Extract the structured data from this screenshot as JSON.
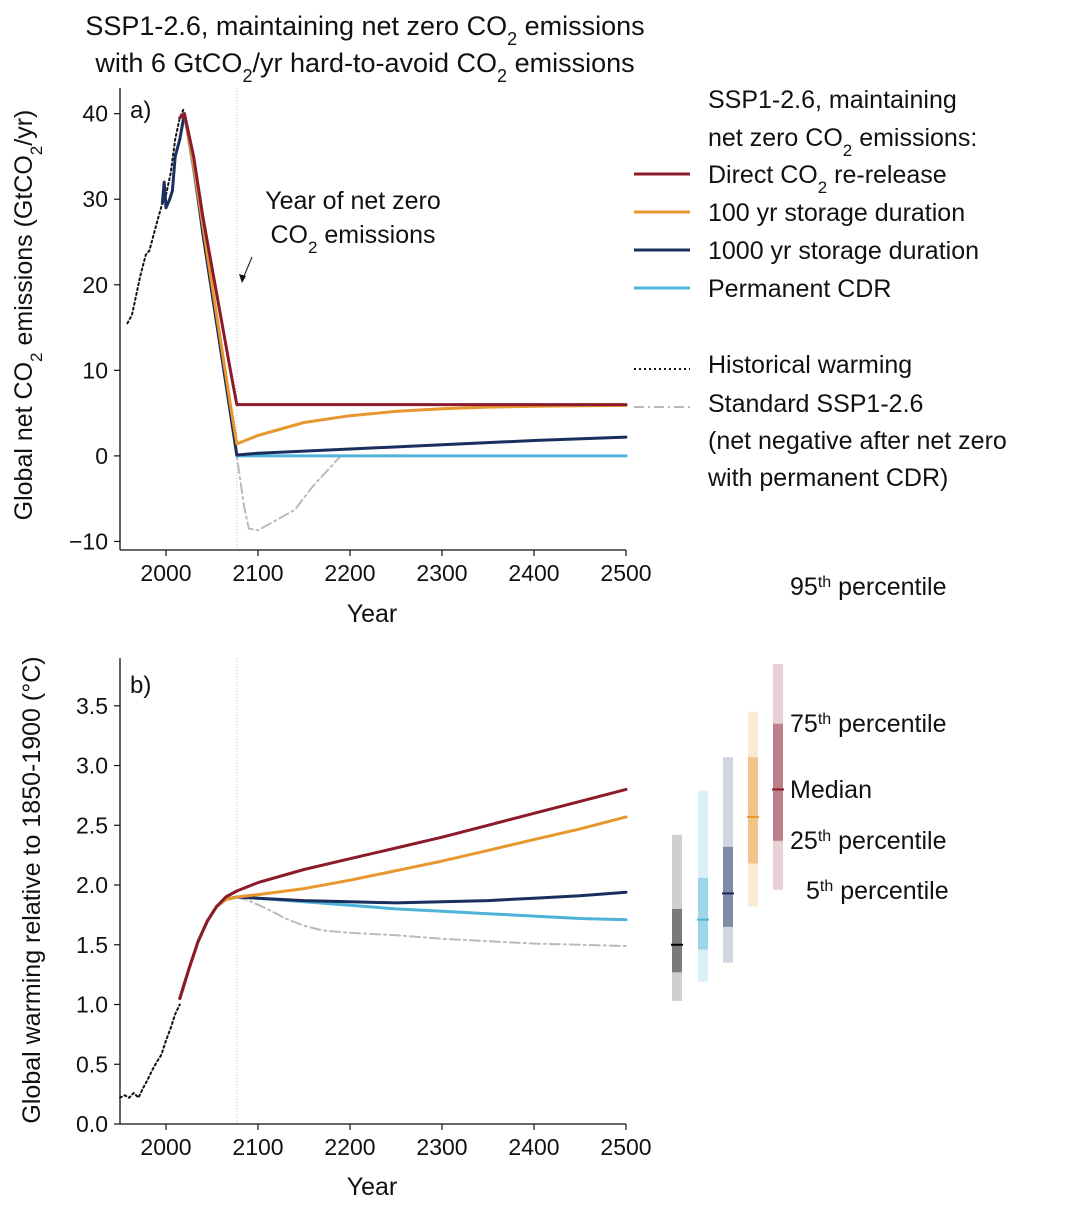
{
  "figure": {
    "title_line1": "SSP1-2.6, maintaining net zero CO",
    "title_line1_sub": "2",
    "title_line1_end": " emissions",
    "title_line2_start": "with 6 GtCO",
    "title_line2_sub": "2",
    "title_line2_end": "/yr hard-to-avoid CO",
    "title_line2_sub2": "2",
    "title_line2_tail": " emissions"
  },
  "colors": {
    "direct": "#8b1a2b",
    "storage100": "#e8962e",
    "storage1000": "#1b2f5e",
    "permanent": "#4fb3d9",
    "historical": "#111111",
    "standard": "#bbbbbb"
  },
  "legend": {
    "header_line1": "SSP1-2.6, maintaining",
    "header_line2": "net zero CO",
    "header_line2_sub": "2",
    "header_line2_end": " emissions:",
    "direct_a": "Direct CO",
    "direct_sub": "2",
    "direct_b": " re-release",
    "storage100": "100 yr storage duration",
    "storage1000": "1000 yr storage duration",
    "permanent": "Permanent CDR",
    "historical": "Historical warming",
    "standard_line1": "Standard SSP1-2.6",
    "standard_line2": "(net negative after net zero",
    "standard_line3": "with permanent CDR)"
  },
  "percentile_key": {
    "p95": "95",
    "p95_sup": "th",
    "p95_end": " percentile",
    "p75": "75",
    "p75_sup": "th",
    "p75_end": " percentile",
    "median": "Median",
    "p25": "25",
    "p25_sup": "th",
    "p25_end": " percentile",
    "p5": "5",
    "p5_sup": "th",
    "p5_end": " percentile"
  },
  "chart_data": [
    {
      "type": "line",
      "panel_label": "a)",
      "xlabel": "Year",
      "ylabel_a": "Global net CO",
      "ylabel_sub": "2",
      "ylabel_b": " emissions (GtCO",
      "ylabel_sub2": "2",
      "ylabel_c": "/yr)",
      "xlim": [
        1950,
        2500
      ],
      "ylim": [
        -11,
        43
      ],
      "xticks": [
        2000,
        2100,
        2200,
        2300,
        2400,
        2500
      ],
      "yticks": [
        -10,
        0,
        10,
        20,
        30,
        40
      ],
      "ytick_labels": [
        "−10",
        "0",
        "10",
        "20",
        "30",
        "40"
      ],
      "net_zero_year": 2077,
      "annotation_line1": "Year of net zero",
      "annotation_line2_a": "CO",
      "annotation_line2_sub": "2",
      "annotation_line2_b": " emissions",
      "series": [
        {
          "key": "historical",
          "style": "dotted",
          "x": [
            1958,
            1963,
            1968,
            1972,
            1978,
            1982,
            1987,
            1992,
            1996,
            2000,
            2005,
            2010,
            2015,
            2019
          ],
          "y": [
            15.5,
            16.5,
            19,
            21,
            23.5,
            24,
            26,
            28,
            29.5,
            30.5,
            33,
            37,
            39.5,
            40.5
          ]
        },
        {
          "key": "standard",
          "style": "dashdot",
          "x": [
            2015,
            2020,
            2030,
            2040,
            2050,
            2060,
            2070,
            2077,
            2085,
            2090,
            2100,
            2140,
            2160,
            2190
          ],
          "y": [
            39.5,
            40,
            33,
            26,
            19,
            12,
            6,
            0,
            -6,
            -8.5,
            -8.7,
            -6.3,
            -3.5,
            0
          ]
        },
        {
          "key": "direct",
          "style": "solid",
          "x": [
            2015,
            2020,
            2030,
            2040,
            2050,
            2060,
            2070,
            2077,
            2100,
            2200,
            2300,
            2400,
            2500
          ],
          "y": [
            39.5,
            40,
            35,
            28,
            22,
            16,
            10,
            6,
            6,
            6,
            6,
            6,
            6
          ]
        },
        {
          "key": "storage100",
          "style": "solid",
          "x": [
            2015,
            2020,
            2030,
            2040,
            2050,
            2060,
            2070,
            2077,
            2100,
            2150,
            2200,
            2250,
            2300,
            2350,
            2400,
            2450,
            2500
          ],
          "y": [
            39.5,
            40,
            34,
            27,
            20,
            13,
            6,
            1.4,
            2.4,
            3.9,
            4.7,
            5.2,
            5.5,
            5.7,
            5.8,
            5.85,
            5.9
          ]
        },
        {
          "key": "storage1000",
          "style": "solid",
          "x": [
            1996,
            1998,
            2000,
            2004,
            2007,
            2010,
            2015,
            2020,
            2030,
            2040,
            2050,
            2060,
            2070,
            2077,
            2100,
            2200,
            2300,
            2400,
            2500
          ],
          "y": [
            29.5,
            32,
            29,
            30,
            31,
            35,
            37,
            40,
            34,
            26,
            19,
            12,
            5,
            0.1,
            0.3,
            0.8,
            1.3,
            1.8,
            2.2
          ]
        },
        {
          "key": "permanent",
          "style": "solid",
          "x": [
            2015,
            2020,
            2030,
            2040,
            2050,
            2060,
            2070,
            2077,
            2100,
            2200,
            2300,
            2400,
            2500
          ],
          "y": [
            39.5,
            40,
            33.5,
            26.5,
            19.5,
            12.5,
            5.5,
            0,
            0,
            0,
            0,
            0,
            0
          ]
        }
      ]
    },
    {
      "type": "line",
      "panel_label": "b)",
      "xlabel": "Year",
      "ylabel": "Global warming relative to 1850-1900 (°C)",
      "xlim": [
        1950,
        2500
      ],
      "ylim": [
        0,
        3.9
      ],
      "xticks": [
        2000,
        2100,
        2200,
        2300,
        2400,
        2500
      ],
      "yticks": [
        0.0,
        0.5,
        1.0,
        1.5,
        2.0,
        2.5,
        3.0,
        3.5
      ],
      "ytick_labels": [
        "0.0",
        "0.5",
        "1.0",
        "1.5",
        "2.0",
        "2.5",
        "3.0",
        "3.5"
      ],
      "net_zero_year": 2077,
      "series": [
        {
          "key": "historical",
          "style": "dotted",
          "x": [
            1950,
            1955,
            1960,
            1965,
            1970,
            1975,
            1980,
            1985,
            1990,
            1995,
            2000,
            2005,
            2010,
            2015
          ],
          "y": [
            0.22,
            0.24,
            0.22,
            0.26,
            0.22,
            0.3,
            0.37,
            0.45,
            0.52,
            0.58,
            0.7,
            0.8,
            0.92,
            1.0
          ]
        },
        {
          "key": "standard",
          "style": "dashdot",
          "x": [
            2077,
            2090,
            2110,
            2130,
            2150,
            2170,
            2200,
            2250,
            2300,
            2350,
            2400,
            2450,
            2500
          ],
          "y": [
            1.9,
            1.87,
            1.8,
            1.72,
            1.66,
            1.62,
            1.6,
            1.58,
            1.55,
            1.53,
            1.51,
            1.5,
            1.49
          ]
        },
        {
          "key": "direct",
          "style": "solid",
          "x": [
            2015,
            2025,
            2035,
            2045,
            2055,
            2065,
            2077,
            2100,
            2150,
            2200,
            2250,
            2300,
            2350,
            2400,
            2450,
            2500
          ],
          "y": [
            1.05,
            1.3,
            1.53,
            1.7,
            1.82,
            1.9,
            1.95,
            2.02,
            2.13,
            2.22,
            2.31,
            2.4,
            2.5,
            2.6,
            2.7,
            2.8
          ]
        },
        {
          "key": "storage100",
          "style": "solid",
          "x": [
            2015,
            2025,
            2035,
            2045,
            2055,
            2065,
            2077,
            2100,
            2150,
            2200,
            2250,
            2300,
            2350,
            2400,
            2450,
            2500
          ],
          "y": [
            1.05,
            1.3,
            1.53,
            1.7,
            1.82,
            1.88,
            1.9,
            1.92,
            1.97,
            2.04,
            2.12,
            2.2,
            2.29,
            2.38,
            2.47,
            2.57
          ]
        },
        {
          "key": "storage1000",
          "style": "solid",
          "x": [
            2015,
            2025,
            2035,
            2045,
            2055,
            2065,
            2077,
            2100,
            2150,
            2200,
            2250,
            2300,
            2350,
            2400,
            2450,
            2500
          ],
          "y": [
            1.05,
            1.3,
            1.53,
            1.7,
            1.82,
            1.88,
            1.9,
            1.89,
            1.87,
            1.86,
            1.85,
            1.86,
            1.87,
            1.89,
            1.91,
            1.94
          ]
        },
        {
          "key": "permanent",
          "style": "solid",
          "x": [
            2015,
            2025,
            2035,
            2045,
            2055,
            2065,
            2077,
            2100,
            2150,
            2200,
            2250,
            2300,
            2350,
            2400,
            2450,
            2500
          ],
          "y": [
            1.05,
            1.3,
            1.53,
            1.7,
            1.82,
            1.88,
            1.9,
            1.89,
            1.86,
            1.83,
            1.8,
            1.78,
            1.76,
            1.74,
            1.72,
            1.71
          ]
        }
      ],
      "ranges": [
        {
          "key": "historical",
          "p5": 1.03,
          "p25": 1.27,
          "median": 1.5,
          "p75": 1.8,
          "p95": 2.42
        },
        {
          "key": "permanent",
          "p5": 1.19,
          "p25": 1.46,
          "median": 1.71,
          "p75": 2.06,
          "p95": 2.79
        },
        {
          "key": "storage1000",
          "p5": 1.35,
          "p25": 1.65,
          "median": 1.93,
          "p75": 2.32,
          "p95": 3.07
        },
        {
          "key": "storage100",
          "p5": 1.82,
          "p25": 2.18,
          "median": 2.57,
          "p75": 3.07,
          "p95": 3.45
        },
        {
          "key": "direct",
          "p5": 1.96,
          "p25": 2.37,
          "median": 2.8,
          "p75": 3.35,
          "p95": 3.85
        }
      ]
    }
  ]
}
